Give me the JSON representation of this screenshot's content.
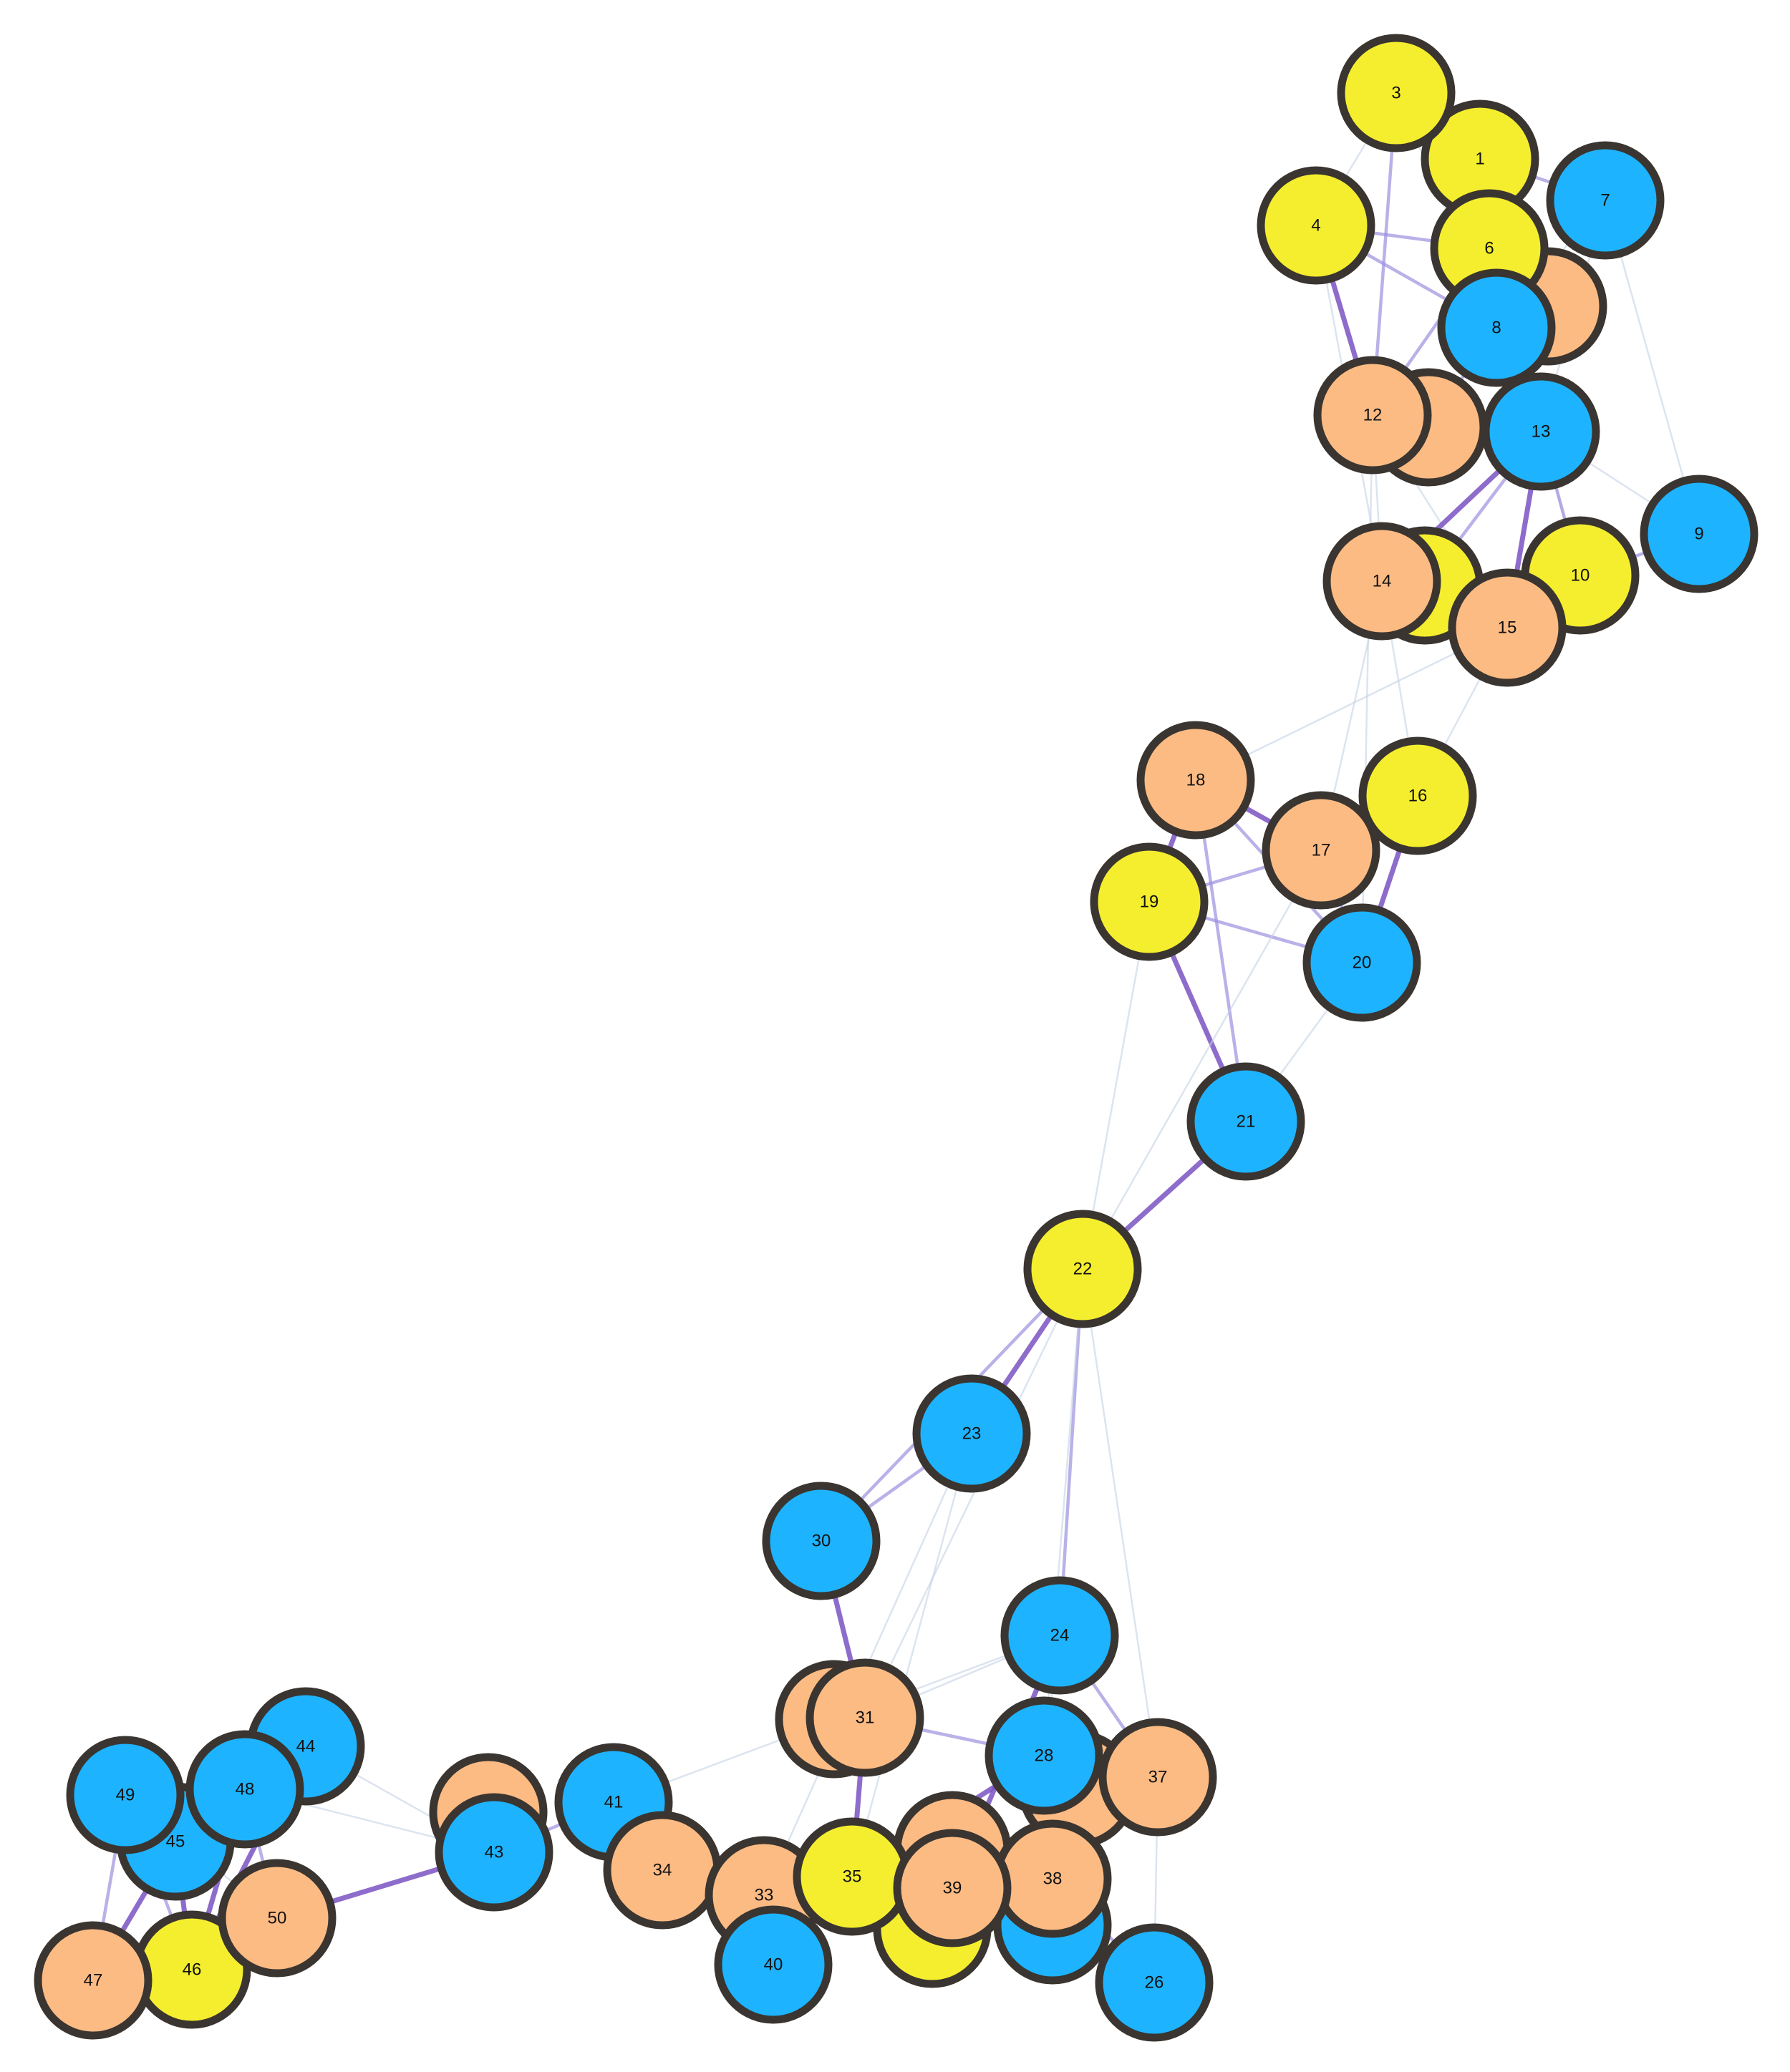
{
  "colors": {
    "yellow": "#f5ee2e",
    "orange": "#fdbb84",
    "blue": "#1eb3ff",
    "edge_strong": "#7a52c2",
    "edge_medium": "#9b90de",
    "edge_weak": "#c5d2e4"
  },
  "nodes": [
    {
      "id": "n-hidden-a",
      "label": "",
      "color": "orange"
    },
    {
      "id": "n1",
      "label": "1",
      "color": "yellow"
    },
    {
      "id": "n3",
      "label": "3",
      "color": "yellow"
    },
    {
      "id": "n7",
      "label": "7",
      "color": "blue"
    },
    {
      "id": "n4",
      "label": "4",
      "color": "yellow"
    },
    {
      "id": "n6",
      "label": "6",
      "color": "yellow"
    },
    {
      "id": "n8",
      "label": "8",
      "color": "blue"
    },
    {
      "id": "n-hidden-b",
      "label": "",
      "color": "orange"
    },
    {
      "id": "n12",
      "label": "12",
      "color": "orange"
    },
    {
      "id": "n13",
      "label": "13",
      "color": "blue"
    },
    {
      "id": "n9",
      "label": "9",
      "color": "blue"
    },
    {
      "id": "n-hidden-c",
      "label": "",
      "color": "yellow"
    },
    {
      "id": "n14",
      "label": "14",
      "color": "orange"
    },
    {
      "id": "n10",
      "label": "10",
      "color": "yellow"
    },
    {
      "id": "n15",
      "label": "15",
      "color": "orange"
    },
    {
      "id": "n18",
      "label": "18",
      "color": "orange"
    },
    {
      "id": "n16",
      "label": "16",
      "color": "yellow"
    },
    {
      "id": "n17",
      "label": "17",
      "color": "orange"
    },
    {
      "id": "n19",
      "label": "19",
      "color": "yellow"
    },
    {
      "id": "n20",
      "label": "20",
      "color": "blue"
    },
    {
      "id": "n21",
      "label": "21",
      "color": "blue"
    },
    {
      "id": "n22",
      "label": "22",
      "color": "yellow"
    },
    {
      "id": "n23",
      "label": "23",
      "color": "blue"
    },
    {
      "id": "n30",
      "label": "30",
      "color": "blue"
    },
    {
      "id": "n24",
      "label": "24",
      "color": "blue"
    },
    {
      "id": "n-hidden-d",
      "label": "",
      "color": "orange"
    },
    {
      "id": "n31",
      "label": "31",
      "color": "orange"
    },
    {
      "id": "n-hidden-e",
      "label": "",
      "color": "orange"
    },
    {
      "id": "n37",
      "label": "37",
      "color": "orange"
    },
    {
      "id": "n28",
      "label": "28",
      "color": "blue"
    },
    {
      "id": "n26",
      "label": "26",
      "color": "blue"
    },
    {
      "id": "n-hidden-f",
      "label": "",
      "color": "blue"
    },
    {
      "id": "n-hidden-g",
      "label": "",
      "color": "yellow"
    },
    {
      "id": "n-hidden-h",
      "label": "",
      "color": "orange"
    },
    {
      "id": "n38",
      "label": "38",
      "color": "orange"
    },
    {
      "id": "n41",
      "label": "41",
      "color": "blue"
    },
    {
      "id": "n34",
      "label": "34",
      "color": "orange"
    },
    {
      "id": "n33",
      "label": "33",
      "color": "orange"
    },
    {
      "id": "n40",
      "label": "40",
      "color": "blue"
    },
    {
      "id": "n35",
      "label": "35",
      "color": "yellow"
    },
    {
      "id": "n39",
      "label": "39",
      "color": "orange"
    },
    {
      "id": "n-hidden-i",
      "label": "",
      "color": "orange"
    },
    {
      "id": "n43",
      "label": "43",
      "color": "blue"
    },
    {
      "id": "n44",
      "label": "44",
      "color": "blue"
    },
    {
      "id": "n45",
      "label": "45",
      "color": "blue"
    },
    {
      "id": "n49",
      "label": "49",
      "color": "blue"
    },
    {
      "id": "n48",
      "label": "48",
      "color": "blue"
    },
    {
      "id": "n46",
      "label": "46",
      "color": "yellow"
    },
    {
      "id": "n47",
      "label": "47",
      "color": "orange"
    },
    {
      "id": "n50",
      "label": "50",
      "color": "orange"
    }
  ],
  "edges": [
    {
      "source": "n3",
      "target": "n1",
      "strength": "weak"
    },
    {
      "source": "n3",
      "target": "n6",
      "strength": "medium"
    },
    {
      "source": "n3",
      "target": "n12",
      "strength": "medium"
    },
    {
      "source": "n3",
      "target": "n8",
      "strength": "weak"
    },
    {
      "source": "n3",
      "target": "n4",
      "strength": "weak"
    },
    {
      "source": "n1",
      "target": "n7",
      "strength": "medium"
    },
    {
      "source": "n1",
      "target": "n6",
      "strength": "weak"
    },
    {
      "source": "n1",
      "target": "n13",
      "strength": "weak"
    },
    {
      "source": "n4",
      "target": "n12",
      "strength": "strong"
    },
    {
      "source": "n4",
      "target": "n8",
      "strength": "medium"
    },
    {
      "source": "n4",
      "target": "n6",
      "strength": "medium"
    },
    {
      "source": "n4",
      "target": "n14",
      "strength": "weak"
    },
    {
      "source": "n6",
      "target": "n13",
      "strength": "medium"
    },
    {
      "source": "n6",
      "target": "n12",
      "strength": "medium"
    },
    {
      "source": "n6",
      "target": "n10",
      "strength": "weak"
    },
    {
      "source": "n7",
      "target": "n8",
      "strength": "weak"
    },
    {
      "source": "n7",
      "target": "n9",
      "strength": "weak"
    },
    {
      "source": "n7",
      "target": "n13",
      "strength": "weak"
    },
    {
      "source": "n8",
      "target": "n13",
      "strength": "medium"
    },
    {
      "source": "n8",
      "target": "n-hidden-b",
      "strength": "medium"
    },
    {
      "source": "n12",
      "target": "n14",
      "strength": "weak"
    },
    {
      "source": "n12",
      "target": "n15",
      "strength": "weak"
    },
    {
      "source": "n13",
      "target": "n14",
      "strength": "strong"
    },
    {
      "source": "n13",
      "target": "n10",
      "strength": "medium"
    },
    {
      "source": "n13",
      "target": "n15",
      "strength": "strong"
    },
    {
      "source": "n13",
      "target": "n-hidden-c",
      "strength": "medium"
    },
    {
      "source": "n13",
      "target": "n9",
      "strength": "weak"
    },
    {
      "source": "n10",
      "target": "n9",
      "strength": "medium"
    },
    {
      "source": "n14",
      "target": "n10",
      "strength": "medium"
    },
    {
      "source": "n14",
      "target": "n16",
      "strength": "weak"
    },
    {
      "source": "n14",
      "target": "n17",
      "strength": "weak"
    },
    {
      "source": "n15",
      "target": "n16",
      "strength": "weak"
    },
    {
      "source": "n15",
      "target": "n18",
      "strength": "weak"
    },
    {
      "source": "n12",
      "target": "n20",
      "strength": "weak"
    },
    {
      "source": "n18",
      "target": "n17",
      "strength": "strong"
    },
    {
      "source": "n18",
      "target": "n19",
      "strength": "strong"
    },
    {
      "source": "n18",
      "target": "n21",
      "strength": "medium"
    },
    {
      "source": "n18",
      "target": "n20",
      "strength": "medium"
    },
    {
      "source": "n17",
      "target": "n16",
      "strength": "medium"
    },
    {
      "source": "n17",
      "target": "n19",
      "strength": "medium"
    },
    {
      "source": "n17",
      "target": "n20",
      "strength": "medium"
    },
    {
      "source": "n16",
      "target": "n20",
      "strength": "strong"
    },
    {
      "source": "n19",
      "target": "n20",
      "strength": "medium"
    },
    {
      "source": "n19",
      "target": "n21",
      "strength": "strong"
    },
    {
      "source": "n20",
      "target": "n21",
      "strength": "weak"
    },
    {
      "source": "n17",
      "target": "n22",
      "strength": "weak"
    },
    {
      "source": "n19",
      "target": "n22",
      "strength": "weak"
    },
    {
      "source": "n21",
      "target": "n22",
      "strength": "strong"
    },
    {
      "source": "n22",
      "target": "n23",
      "strength": "strong"
    },
    {
      "source": "n22",
      "target": "n24",
      "strength": "medium"
    },
    {
      "source": "n22",
      "target": "n37",
      "strength": "weak"
    },
    {
      "source": "n22",
      "target": "n30",
      "strength": "medium"
    },
    {
      "source": "n22",
      "target": "n31",
      "strength": "weak"
    },
    {
      "source": "n22",
      "target": "n28",
      "strength": "weak"
    },
    {
      "source": "n23",
      "target": "n30",
      "strength": "medium"
    },
    {
      "source": "n23",
      "target": "n35",
      "strength": "weak"
    },
    {
      "source": "n23",
      "target": "n33",
      "strength": "weak"
    },
    {
      "source": "n30",
      "target": "n31",
      "strength": "strong"
    },
    {
      "source": "n31",
      "target": "n35",
      "strength": "strong"
    },
    {
      "source": "n31",
      "target": "n24",
      "strength": "weak"
    },
    {
      "source": "n31",
      "target": "n28",
      "strength": "medium"
    },
    {
      "source": "n24",
      "target": "n37",
      "strength": "medium"
    },
    {
      "source": "n24",
      "target": "n39",
      "strength": "strong"
    },
    {
      "source": "n24",
      "target": "n28",
      "strength": "weak"
    },
    {
      "source": "n28",
      "target": "n38",
      "strength": "strong"
    },
    {
      "source": "n28",
      "target": "n35",
      "strength": "strong"
    },
    {
      "source": "n37",
      "target": "n26",
      "strength": "weak"
    },
    {
      "source": "n37",
      "target": "n38",
      "strength": "medium"
    },
    {
      "source": "n38",
      "target": "n26",
      "strength": "medium"
    },
    {
      "source": "n35",
      "target": "n39",
      "strength": "strong"
    },
    {
      "source": "n35",
      "target": "n40",
      "strength": "strong"
    },
    {
      "source": "n33",
      "target": "n34",
      "strength": "strong"
    },
    {
      "source": "n33",
      "target": "n40",
      "strength": "strong"
    },
    {
      "source": "n34",
      "target": "n41",
      "strength": "strong"
    },
    {
      "source": "n34",
      "target": "n35",
      "strength": "medium"
    },
    {
      "source": "n41",
      "target": "n43",
      "strength": "medium"
    },
    {
      "source": "n41",
      "target": "n24",
      "strength": "weak"
    },
    {
      "source": "n43",
      "target": "n50",
      "strength": "strong"
    },
    {
      "source": "n43",
      "target": "n44",
      "strength": "weak"
    },
    {
      "source": "n43",
      "target": "n48",
      "strength": "weak"
    },
    {
      "source": "n43",
      "target": "n-hidden-i",
      "strength": "medium"
    },
    {
      "source": "n44",
      "target": "n48",
      "strength": "medium"
    },
    {
      "source": "n44",
      "target": "n45",
      "strength": "medium"
    },
    {
      "source": "n44",
      "target": "n46",
      "strength": "strong"
    },
    {
      "source": "n48",
      "target": "n45",
      "strength": "strong"
    },
    {
      "source": "n48",
      "target": "n46",
      "strength": "strong"
    },
    {
      "source": "n48",
      "target": "n50",
      "strength": "medium"
    },
    {
      "source": "n49",
      "target": "n45",
      "strength": "medium"
    },
    {
      "source": "n49",
      "target": "n47",
      "strength": "medium"
    },
    {
      "source": "n49",
      "target": "n46",
      "strength": "medium"
    },
    {
      "source": "n45",
      "target": "n47",
      "strength": "strong"
    },
    {
      "source": "n45",
      "target": "n46",
      "strength": "strong"
    },
    {
      "source": "n46",
      "target": "n50",
      "strength": "medium"
    },
    {
      "source": "n47",
      "target": "n50",
      "strength": "weak"
    },
    {
      "source": "n49",
      "target": "n50",
      "strength": "weak"
    }
  ]
}
